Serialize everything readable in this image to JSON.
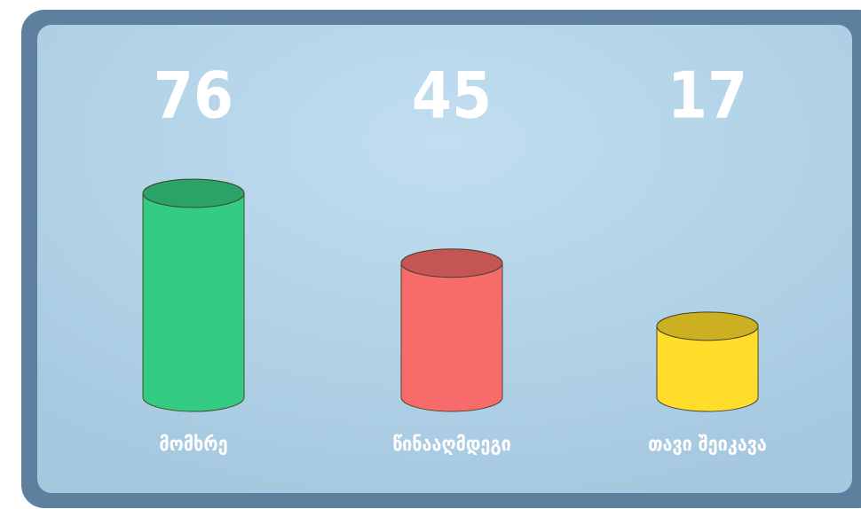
{
  "chart_data": {
    "type": "bar",
    "categories": [
      "მომხრე",
      "წინააღმდეგი",
      "თავი შეიკავა"
    ],
    "values": [
      76,
      45,
      17
    ],
    "colors": [
      "#34cc83",
      "#f76b6b",
      "#ffdd2a"
    ]
  }
}
